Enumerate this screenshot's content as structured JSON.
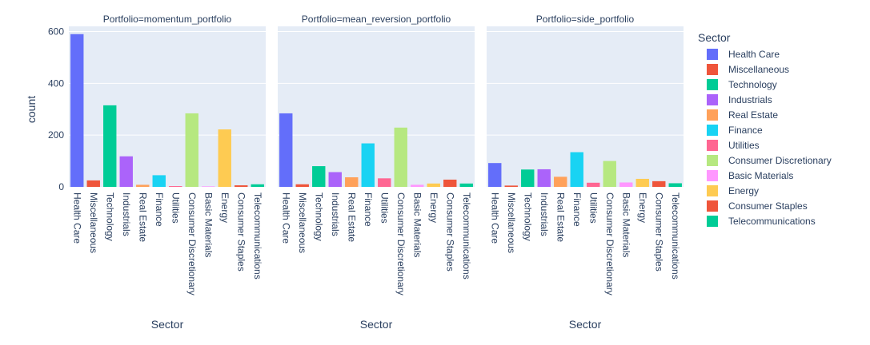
{
  "chart_data": {
    "type": "bar",
    "facet_field": "Portfolio",
    "ylabel": "count",
    "xlabel": "Sector",
    "ylim": [
      0,
      620
    ],
    "yticks": [
      0,
      200,
      400,
      600
    ],
    "grid": true,
    "legend_title": "Sector",
    "legend_position": "right",
    "categories": [
      "Health Care",
      "Miscellaneous",
      "Technology",
      "Industrials",
      "Real Estate",
      "Finance",
      "Utilities",
      "Consumer Discretionary",
      "Basic Materials",
      "Energy",
      "Consumer Staples",
      "Telecommunications"
    ],
    "colors": [
      "#636efa",
      "#EF553B",
      "#00cc96",
      "#ab63fa",
      "#FFA15A",
      "#19d3f3",
      "#FF6692",
      "#B6E880",
      "#FF97FF",
      "#FECB52",
      "#EF553B",
      "#00cc96"
    ],
    "panels": [
      {
        "title": "Portfolio=momentum_portfolio",
        "values": [
          590,
          25,
          315,
          118,
          8,
          45,
          3,
          284,
          2,
          222,
          6,
          10
        ]
      },
      {
        "title": "Portfolio=mean_reversion_portfolio",
        "values": [
          284,
          10,
          80,
          57,
          37,
          168,
          33,
          229,
          8,
          13,
          28,
          13
        ]
      },
      {
        "title": "Portfolio=side_portfolio",
        "values": [
          92,
          5,
          67,
          68,
          39,
          134,
          16,
          100,
          17,
          31,
          22,
          14
        ]
      }
    ]
  }
}
